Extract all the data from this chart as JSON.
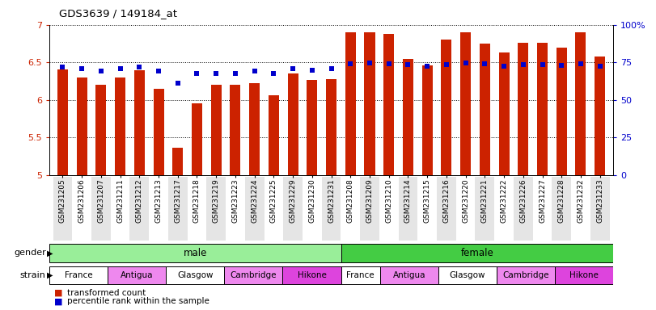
{
  "title": "GDS3639 / 149184_at",
  "samples": [
    "GSM231205",
    "GSM231206",
    "GSM231207",
    "GSM231211",
    "GSM231212",
    "GSM231213",
    "GSM231217",
    "GSM231218",
    "GSM231219",
    "GSM231223",
    "GSM231224",
    "GSM231225",
    "GSM231229",
    "GSM231230",
    "GSM231231",
    "GSM231208",
    "GSM231209",
    "GSM231210",
    "GSM231214",
    "GSM231215",
    "GSM231216",
    "GSM231220",
    "GSM231221",
    "GSM231222",
    "GSM231226",
    "GSM231227",
    "GSM231228",
    "GSM231232",
    "GSM231233"
  ],
  "bar_values": [
    6.41,
    6.3,
    6.2,
    6.3,
    6.4,
    6.15,
    5.37,
    5.96,
    6.2,
    6.2,
    6.22,
    6.06,
    6.35,
    6.27,
    6.28,
    6.9,
    6.9,
    6.88,
    6.55,
    6.46,
    6.8,
    6.9,
    6.75,
    6.63,
    6.76,
    6.76,
    6.7,
    6.9,
    6.58
  ],
  "dot_values": [
    6.435,
    6.42,
    6.39,
    6.42,
    6.435,
    6.39,
    6.22,
    6.355,
    6.355,
    6.355,
    6.39,
    6.355,
    6.42,
    6.4,
    6.42,
    6.48,
    6.49,
    6.485,
    6.47,
    6.445,
    6.47,
    6.49,
    6.485,
    6.445,
    6.47,
    6.47,
    6.46,
    6.485,
    6.445
  ],
  "ylim_lo": 5.0,
  "ylim_hi": 7.0,
  "yticks_left": [
    5.0,
    5.5,
    6.0,
    6.5,
    7.0
  ],
  "ytick_labels_left": [
    "5",
    "5.5",
    "6",
    "6.5",
    "7"
  ],
  "right_ytick_pcts": [
    0,
    25,
    50,
    75,
    100
  ],
  "right_ytick_labels": [
    "0",
    "25",
    "50",
    "75",
    "100%"
  ],
  "bar_color": "#cc2200",
  "dot_color": "#0000cc",
  "male_color": "#99ee99",
  "female_color": "#44cc44",
  "strain_colors": [
    "#ffffff",
    "#ee88ee",
    "#ffffff",
    "#ee88ee",
    "#dd44dd"
  ],
  "strain_names": [
    "France",
    "Antigua",
    "Glasgow",
    "Cambridge",
    "Hikone"
  ],
  "male_strain_ranges": [
    [
      0,
      3
    ],
    [
      3,
      6
    ],
    [
      6,
      9
    ],
    [
      9,
      12
    ],
    [
      12,
      15
    ]
  ],
  "female_strain_ranges": [
    [
      15,
      17
    ],
    [
      17,
      20
    ],
    [
      20,
      23
    ],
    [
      23,
      26
    ],
    [
      26,
      29
    ]
  ],
  "male_range": [
    0,
    15
  ],
  "female_range": [
    15,
    29
  ],
  "n_samples": 29,
  "legend_labels": [
    "transformed count",
    "percentile rank within the sample"
  ],
  "legend_colors": [
    "#cc2200",
    "#0000cc"
  ]
}
